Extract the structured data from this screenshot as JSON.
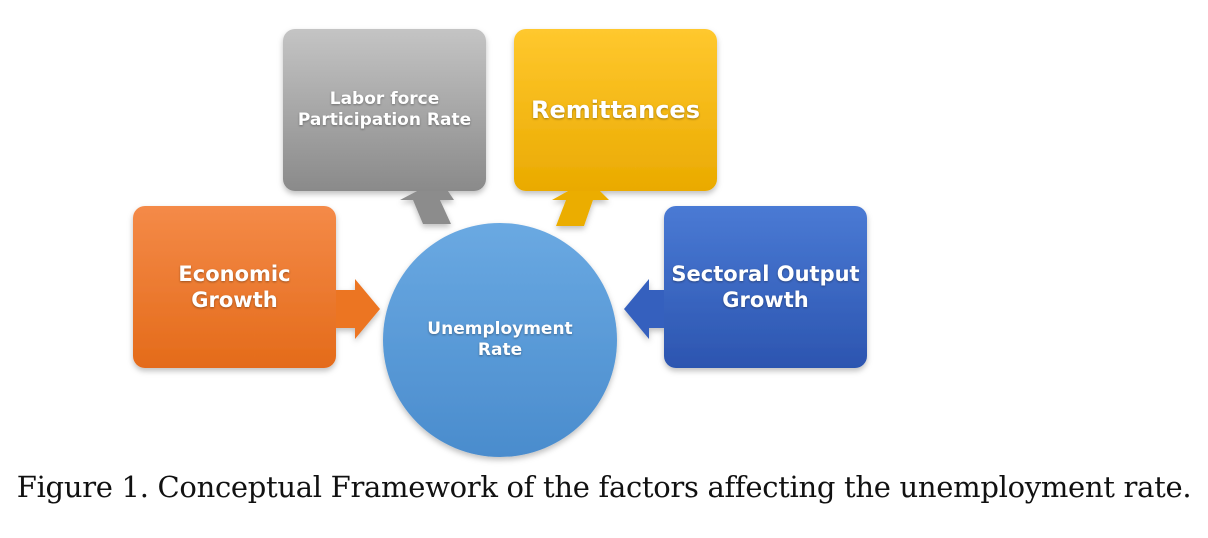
{
  "diagram": {
    "center": {
      "line1": "Unemployment",
      "line2": "Rate"
    },
    "labor": {
      "line1": "Labor force",
      "line2": "Participation Rate"
    },
    "remittances": {
      "line1": "Remittances"
    },
    "economic": {
      "line1": "Economic",
      "line2": "Growth"
    },
    "sectoral": {
      "line1": "Sectoral Output",
      "line2": "Growth"
    }
  },
  "caption": "Figure 1. Conceptual Framework of the factors affecting the unemployment rate.",
  "colors": {
    "gray": "#9a9a9a",
    "yellow": "#f5b800",
    "orange": "#ef7a2a",
    "blue_box": "#3a67c2",
    "circle": "#5a9bd8"
  }
}
